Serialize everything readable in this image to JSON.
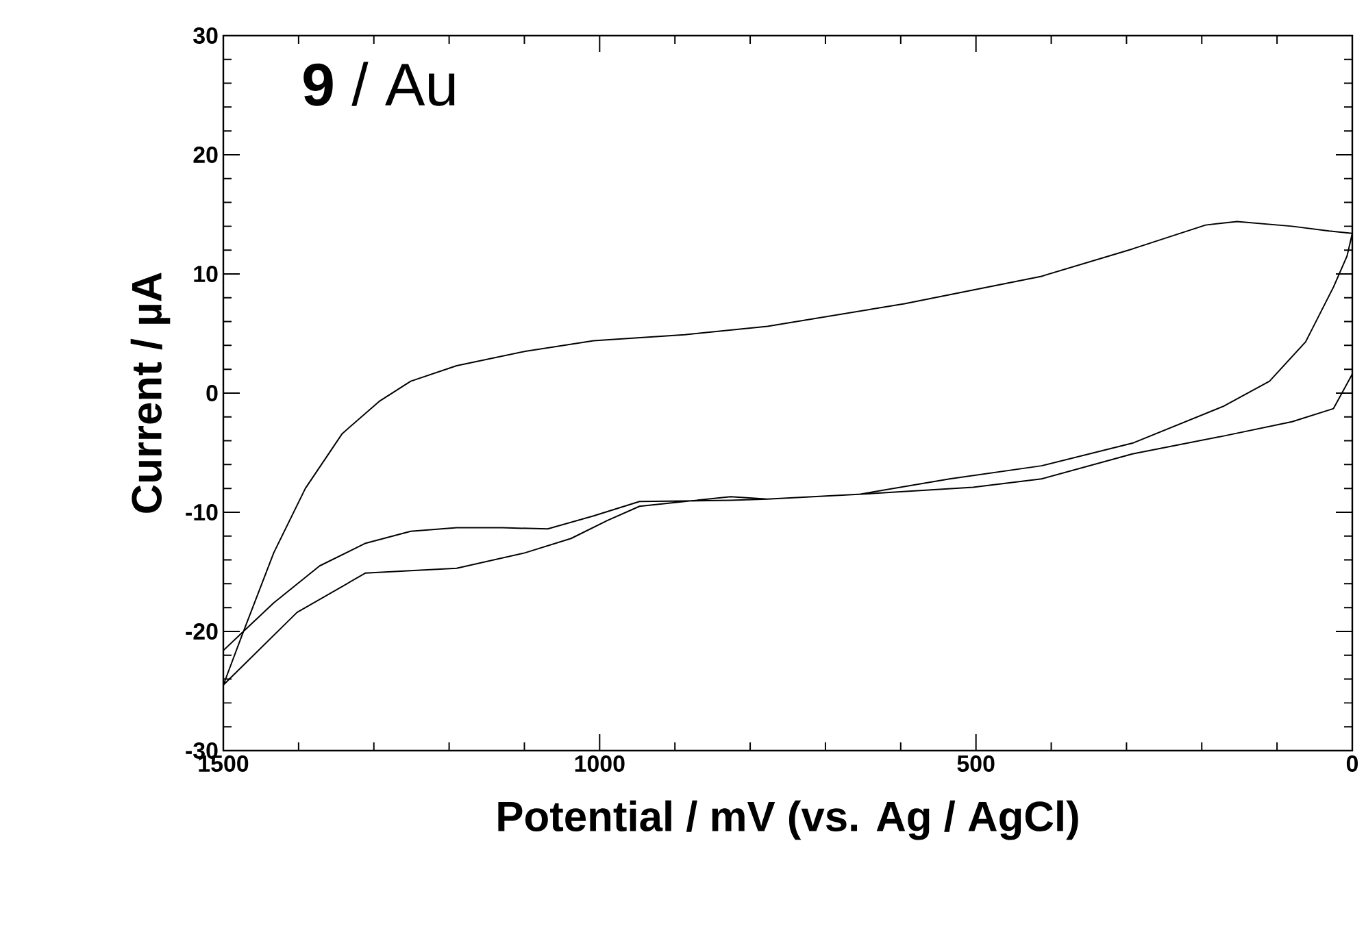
{
  "chart_data": {
    "type": "line",
    "xlabel": "Potential / mV (vs. Ag / AgCl)",
    "ylabel": "Current / µA",
    "annotations": [
      "**9** / Au"
    ],
    "xlim": [
      1500,
      0
    ],
    "xticks": [
      1500,
      1000,
      500,
      0
    ],
    "ylim": [
      -30,
      30
    ],
    "yticks": [
      -30,
      -20,
      -10,
      0,
      10,
      20,
      30
    ],
    "series": [
      {
        "color": "#000000",
        "x": [
          0,
          25,
          80,
          171,
          292,
          413,
          504,
          656,
          777,
          826,
          887,
          947,
          990,
          1038,
          1099,
          1190,
          1251,
          1311,
          1402,
          1500,
          1475,
          1433,
          1391,
          1342,
          1293,
          1251,
          1190,
          1099,
          1008,
          887,
          777,
          595,
          413,
          292,
          195,
          153,
          80,
          31,
          0,
          7,
          25,
          62,
          110,
          171,
          292,
          413,
          535,
          656,
          777,
          826,
          947,
          1008,
          1069,
          1129,
          1190,
          1251,
          1311,
          1372,
          1433,
          1475,
          1500
        ],
        "values": [
          1.6,
          -1.3,
          -2.4,
          -3.6,
          -5.1,
          -7.2,
          -7.9,
          -8.5,
          -8.9,
          -8.7,
          -9.1,
          -9.5,
          -10.7,
          -12.2,
          -13.4,
          -14.7,
          -14.9,
          -15.1,
          -18.4,
          -24.5,
          -20.3,
          -13.4,
          -8.0,
          -3.4,
          -0.7,
          1.0,
          2.3,
          3.5,
          4.4,
          4.9,
          5.6,
          7.5,
          9.8,
          12.1,
          14.1,
          14.4,
          14.0,
          13.6,
          13.4,
          11.5,
          8.9,
          4.3,
          1.0,
          -1.1,
          -4.2,
          -6.1,
          -7.2,
          -8.5,
          -8.9,
          -9.0,
          -9.1,
          -10.3,
          -11.4,
          -11.3,
          -11.3,
          -11.6,
          -12.6,
          -14.5,
          -17.6,
          -20.1,
          -21.6
        ]
      }
    ]
  }
}
